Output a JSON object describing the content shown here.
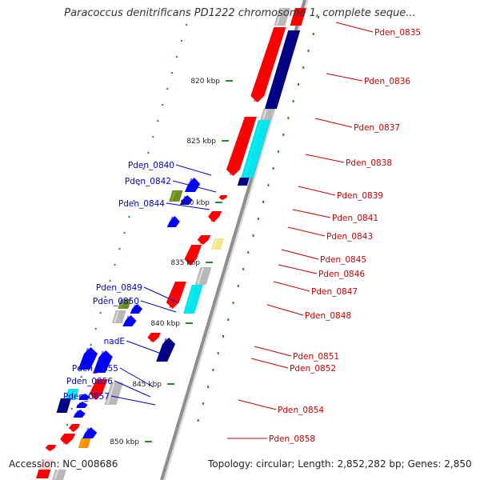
{
  "title": "Paracoccus denitrificans PD1222 chromosome 1, complete seque...",
  "footer": {
    "accession": "Accession: NC_008686",
    "topology": "Topology: circular; Length: 2,852,282 bp; Genes: 2,850"
  },
  "colors": {
    "backbone": "#909090",
    "forward_label": "#0000cc",
    "reverse_label": "#cc0000",
    "ruler_tick": "#2a8a2a",
    "cds_forward": "#0000ff",
    "cds_reverse": "#ff0000",
    "cog_navy": "#000080",
    "cog_cyan": "#00e5ee",
    "cog_gray": "#b8b8b8",
    "cog_olive": "#6b8e23",
    "cog_khaki": "#f0e68c",
    "cog_orange": "#ff8c00"
  },
  "ruler": {
    "ticks": [
      {
        "label": "820 kbp"
      },
      {
        "label": "825 kbp"
      },
      {
        "label": "830 kbp"
      },
      {
        "label": "835 kbp"
      },
      {
        "label": "840 kbp"
      },
      {
        "label": "845 kbp"
      },
      {
        "label": "850 kbp"
      }
    ]
  },
  "genes": {
    "forward": [
      {
        "label": "Pden_0840"
      },
      {
        "label": "Pden_0842"
      },
      {
        "label": "Pden_0844"
      },
      {
        "label": "Pden_0849"
      },
      {
        "label": "Pden_0850"
      },
      {
        "label": "nadE"
      },
      {
        "label": "Pden_0855"
      },
      {
        "label": "Pden_0856"
      },
      {
        "label": "Pden_0857"
      }
    ],
    "reverse": [
      {
        "label": "Pden_0835"
      },
      {
        "label": "Pden_0836"
      },
      {
        "label": "Pden_0837"
      },
      {
        "label": "Pden_0838"
      },
      {
        "label": "Pden_0839"
      },
      {
        "label": "Pden_0841"
      },
      {
        "label": "Pden_0843"
      },
      {
        "label": "Pden_0845"
      },
      {
        "label": "Pden_0846"
      },
      {
        "label": "Pden_0847"
      },
      {
        "label": "Pden_0848"
      },
      {
        "label": "Pden_0851"
      },
      {
        "label": "Pden_0852"
      },
      {
        "label": "Pden_0854"
      },
      {
        "label": "Pden_0858"
      }
    ]
  }
}
